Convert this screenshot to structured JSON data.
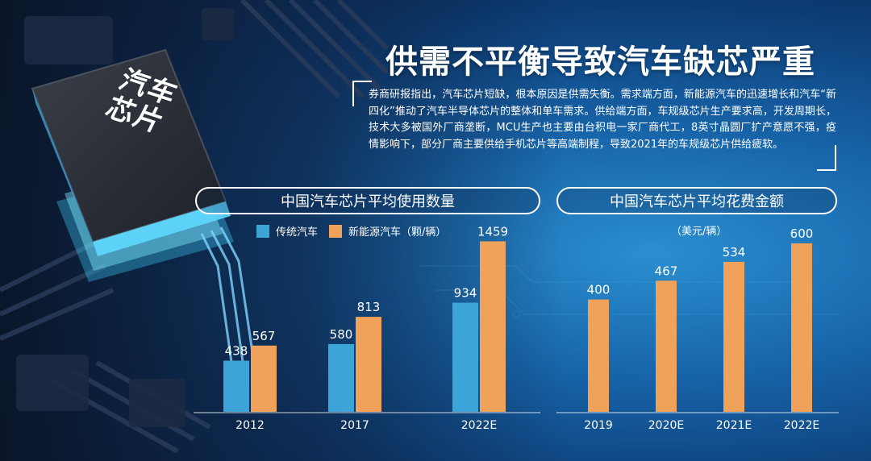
{
  "headline": "供需不平衡导致汽车缺芯严重",
  "chip_label_line1": "汽车",
  "chip_label_line2": "芯片",
  "intro": "券商研报指出，汽车芯片短缺，根本原因是供需失衡。需求端方面，新能源汽车的迅速增长和汽车“新四化”推动了汽车半导体芯片的整体和单车需求。供给端方面，车规级芯片生产要求高，开发周期长，技术大多被国外厂商垄断，MCU生产也主要由台积电一家厂商代工，8英寸晶圆厂扩产意愿不强，疫情影响下，部分厂商主要供给手机芯片等高端制程，导致2021年的车规级芯片供给疲软。",
  "colors": {
    "blue_bar": "#3da4d8",
    "orange_bar": "#f0a15a",
    "text": "#ffffff"
  },
  "chart_data": [
    {
      "type": "bar",
      "title": "中国汽车芯片平均使用数量",
      "unit": "（颗/辆）",
      "categories": [
        "2012",
        "2017",
        "2022E"
      ],
      "series": [
        {
          "name": "传统汽车",
          "values": [
            438,
            580,
            934
          ]
        },
        {
          "name": "新能源汽车",
          "values": [
            567,
            813,
            1459
          ]
        }
      ],
      "ylim": [
        0,
        1600
      ],
      "grid": false,
      "legend": "top"
    },
    {
      "type": "bar",
      "title": "中国汽车芯片平均花费金额",
      "unit": "（美元/辆）",
      "categories": [
        "2019",
        "2020E",
        "2021E",
        "2022E"
      ],
      "values": [
        400,
        467,
        534,
        600
      ],
      "ylim": [
        0,
        660
      ],
      "grid": false
    }
  ]
}
